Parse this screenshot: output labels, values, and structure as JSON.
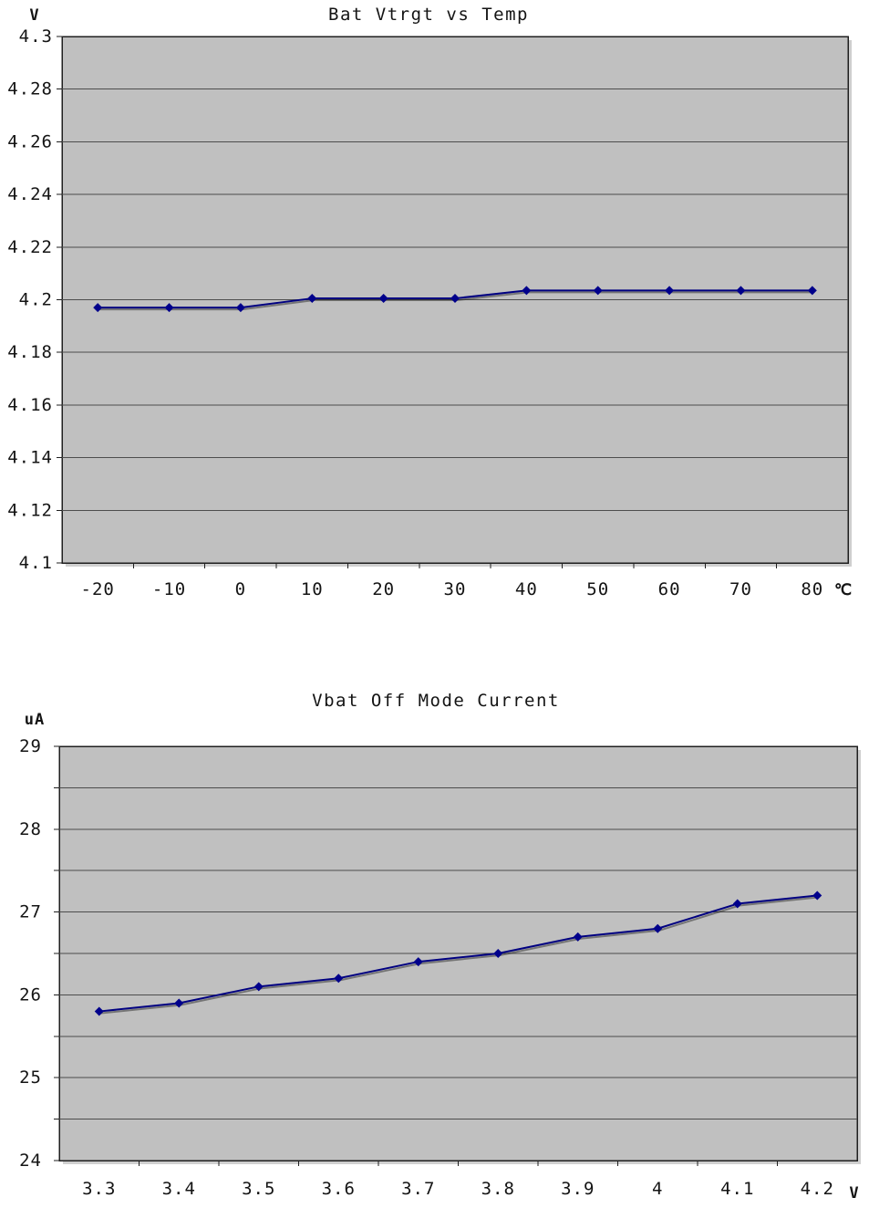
{
  "colors": {
    "page_bg": "#ffffff",
    "plot_bg": "#c0c0c0",
    "grid": "#4d4d4d",
    "frame": "#1f1f1f",
    "frame_shadow": "#cfcfcf",
    "series_line": "#000080",
    "series_shadow": "#1a1a1a",
    "marker": "#00008b",
    "text": "#141414"
  },
  "chart_data": [
    {
      "type": "line",
      "title": "Bat Vtrgt vs Temp",
      "ylabel": "V",
      "xlabel": "℃",
      "categories": [
        "-20",
        "-10",
        "0",
        "10",
        "20",
        "30",
        "40",
        "50",
        "60",
        "70",
        "80"
      ],
      "x": [
        -20,
        -10,
        0,
        10,
        20,
        30,
        40,
        50,
        60,
        70,
        80
      ],
      "values": [
        4.197,
        4.197,
        4.197,
        4.2005,
        4.2005,
        4.2005,
        4.2035,
        4.2035,
        4.2035,
        4.2035,
        4.2035
      ],
      "ylim": [
        4.1,
        4.3
      ],
      "y_tick_step": 0.02,
      "y_grid_step": 0.02,
      "y_tick_labels": [
        "4.1",
        "4.12",
        "4.14",
        "4.16",
        "4.18",
        "4.2",
        "4.22",
        "4.24",
        "4.26",
        "4.28",
        "4.3"
      ],
      "grid": "on",
      "legend": "none",
      "marker": "diamond"
    },
    {
      "type": "line",
      "title": "Vbat Off Mode Current",
      "ylabel": "uA",
      "xlabel": "V",
      "categories": [
        "3.3",
        "3.4",
        "3.5",
        "3.6",
        "3.7",
        "3.8",
        "3.9",
        "4",
        "4.1",
        "4.2"
      ],
      "x": [
        3.3,
        3.4,
        3.5,
        3.6,
        3.7,
        3.8,
        3.9,
        4.0,
        4.1,
        4.2
      ],
      "values": [
        25.8,
        25.9,
        26.1,
        26.2,
        26.4,
        26.5,
        26.7,
        26.8,
        27.1,
        27.2
      ],
      "ylim": [
        24,
        29
      ],
      "y_tick_step": 1,
      "y_grid_step": 0.5,
      "y_tick_labels": [
        "24",
        "25",
        "26",
        "27",
        "28",
        "29"
      ],
      "grid": "on",
      "legend": "none",
      "marker": "diamond"
    }
  ]
}
